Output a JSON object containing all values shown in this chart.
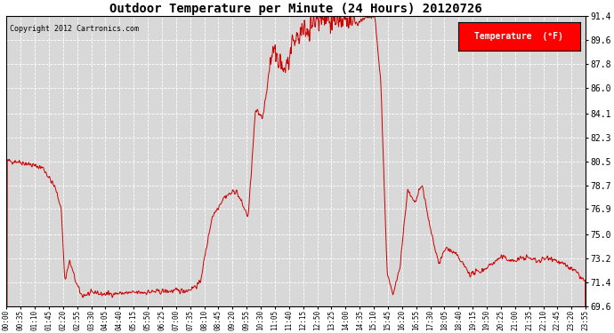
{
  "title": "Outdoor Temperature per Minute (24 Hours) 20120726",
  "copyright_text": "Copyright 2012 Cartronics.com",
  "legend_label": "Temperature  (°F)",
  "line_color": "#cc0000",
  "background_color": "#ffffff",
  "plot_bg_color": "#d8d8d8",
  "grid_color": "#ffffff",
  "ylim": [
    69.6,
    91.4
  ],
  "yticks": [
    69.6,
    71.4,
    73.2,
    75.0,
    76.9,
    78.7,
    80.5,
    82.3,
    84.1,
    86.0,
    87.8,
    89.6,
    91.4
  ],
  "xtick_labels": [
    "00:00",
    "00:35",
    "01:10",
    "01:45",
    "02:20",
    "02:55",
    "03:30",
    "04:05",
    "04:40",
    "05:15",
    "05:50",
    "06:25",
    "07:00",
    "07:35",
    "08:10",
    "08:45",
    "09:20",
    "09:55",
    "10:30",
    "11:05",
    "11:40",
    "12:15",
    "12:50",
    "13:25",
    "14:00",
    "14:35",
    "15:10",
    "15:45",
    "16:20",
    "16:55",
    "17:30",
    "18:05",
    "18:40",
    "19:15",
    "19:50",
    "20:25",
    "21:00",
    "21:35",
    "22:10",
    "22:45",
    "23:20",
    "23:55"
  ]
}
